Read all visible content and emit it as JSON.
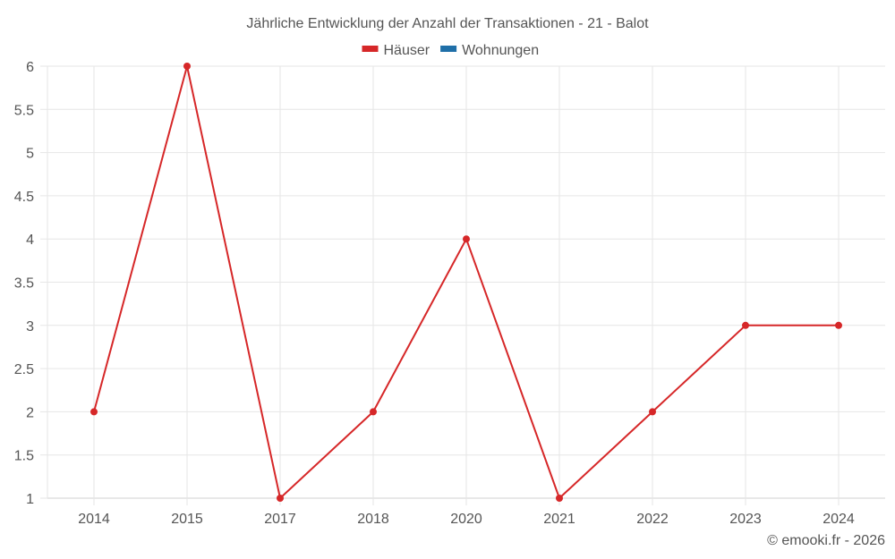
{
  "chart_data": {
    "type": "line",
    "title": "Jährliche Entwicklung der Anzahl der Transaktionen - 21 - Balot",
    "xlabel": "",
    "ylabel": "",
    "categories": [
      "2014",
      "2015",
      "2017",
      "2018",
      "2020",
      "2021",
      "2022",
      "2023",
      "2024"
    ],
    "series": [
      {
        "name": "Häuser",
        "color": "#d62728",
        "values": [
          2,
          6,
          1,
          2,
          4,
          1,
          2,
          3,
          3
        ]
      },
      {
        "name": "Wohnungen",
        "color": "#1f6fa8",
        "values": []
      }
    ],
    "ylim": [
      1,
      6
    ],
    "yticks": [
      "1",
      "1.5",
      "2",
      "2.5",
      "3",
      "3.5",
      "4",
      "4.5",
      "5",
      "5.5",
      "6"
    ],
    "grid": true,
    "legend_position": "top"
  },
  "legend": {
    "items": [
      {
        "label": "Häuser",
        "color": "#d62728"
      },
      {
        "label": "Wohnungen",
        "color": "#1f6fa8"
      }
    ]
  },
  "credit": "© emooki.fr - 2026"
}
